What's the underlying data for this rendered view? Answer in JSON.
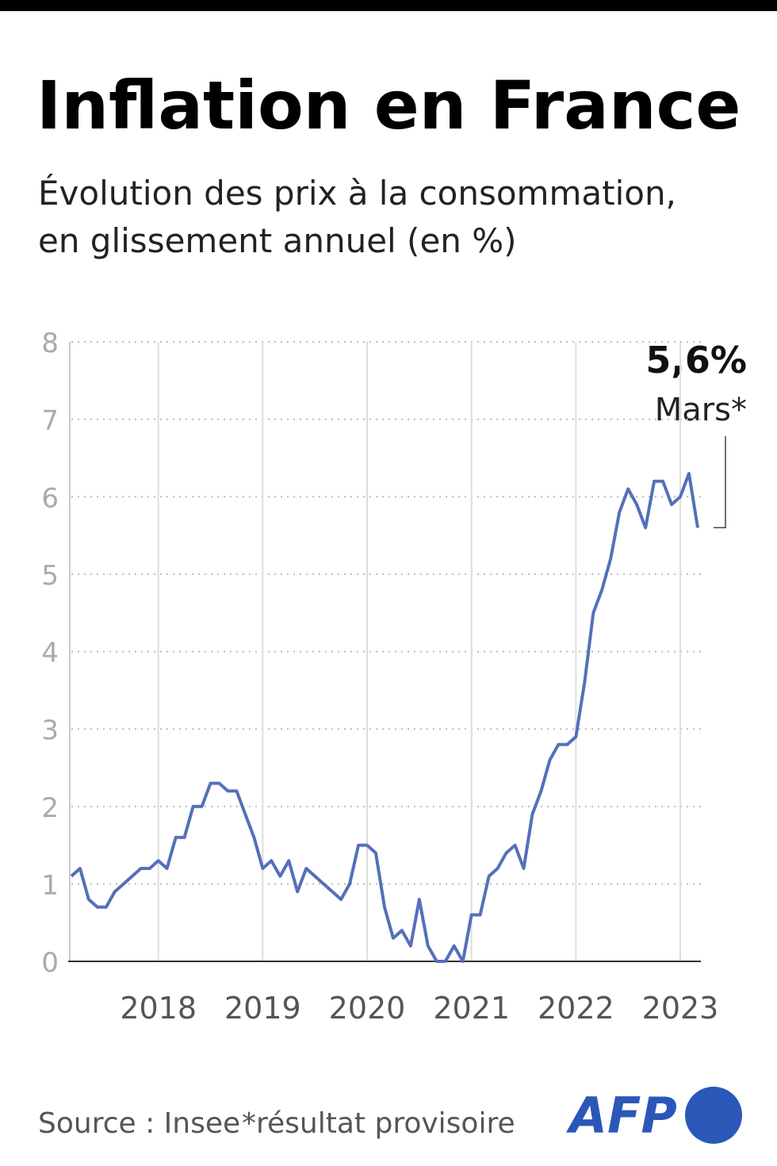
{
  "chart_data": {
    "type": "line",
    "title": "Inflation en France",
    "subtitle": [
      "Évolution des prix à la consommation,",
      "en glissement annuel (en %)"
    ],
    "x": [
      2017.167,
      2017.25,
      2017.333,
      2017.417,
      2017.5,
      2017.583,
      2017.667,
      2017.75,
      2017.833,
      2017.917,
      2018,
      2018.083,
      2018.167,
      2018.25,
      2018.333,
      2018.417,
      2018.5,
      2018.583,
      2018.667,
      2018.75,
      2018.833,
      2018.917,
      2019,
      2019.083,
      2019.167,
      2019.25,
      2019.333,
      2019.417,
      2019.5,
      2019.583,
      2019.667,
      2019.75,
      2019.833,
      2019.917,
      2020,
      2020.083,
      2020.167,
      2020.25,
      2020.333,
      2020.417,
      2020.5,
      2020.583,
      2020.667,
      2020.75,
      2020.833,
      2020.917,
      2021,
      2021.083,
      2021.167,
      2021.25,
      2021.333,
      2021.417,
      2021.5,
      2021.583,
      2021.667,
      2021.75,
      2021.833,
      2021.917,
      2022,
      2022.083,
      2022.167,
      2022.25,
      2022.333,
      2022.417,
      2022.5,
      2022.583,
      2022.667,
      2022.75,
      2022.833,
      2022.917,
      2023,
      2023.083,
      2023.167
    ],
    "series": [
      {
        "color": "#5470b9",
        "values": [
          1.1,
          1.2,
          0.8,
          0.7,
          0.7,
          0.9,
          1.0,
          1.1,
          1.2,
          1.2,
          1.3,
          1.2,
          1.6,
          1.6,
          2.0,
          2.0,
          2.3,
          2.3,
          2.2,
          2.2,
          1.9,
          1.6,
          1.2,
          1.3,
          1.1,
          1.3,
          0.9,
          1.2,
          1.1,
          1.0,
          0.9,
          0.8,
          1.0,
          1.5,
          1.5,
          1.4,
          0.7,
          0.3,
          0.4,
          0.2,
          0.8,
          0.2,
          0.0,
          0.0,
          0.2,
          0.0,
          0.6,
          0.6,
          1.1,
          1.2,
          1.4,
          1.5,
          1.2,
          1.9,
          2.2,
          2.6,
          2.8,
          2.8,
          2.9,
          3.6,
          4.5,
          4.8,
          5.2,
          5.8,
          6.1,
          5.9,
          5.6,
          6.2,
          6.2,
          5.9,
          6.0,
          6.3,
          5.6
        ]
      }
    ],
    "xlim": [
      2017.167,
      2023.167
    ],
    "xticks": [
      2018,
      2019,
      2020,
      2021,
      2022,
      2023
    ],
    "ylim": [
      0,
      8
    ],
    "yticks": [
      0,
      1,
      2,
      3,
      4,
      5,
      6,
      7,
      8
    ],
    "grid": true,
    "annotation": {
      "value_label": "5,6%",
      "label": "Mars*"
    },
    "source": "Source : Insee",
    "note": "*résultat provisoire",
    "logo": "AFP"
  }
}
